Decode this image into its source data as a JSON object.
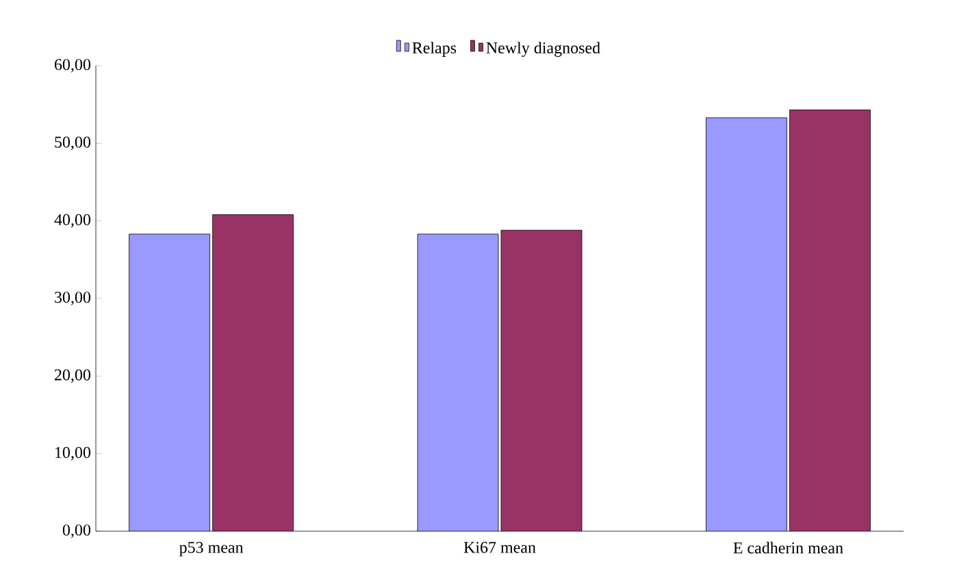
{
  "chart_data": {
    "type": "bar",
    "categories": [
      "p53 mean",
      "Ki67 mean",
      "E cadherin mean"
    ],
    "series": [
      {
        "name": "Relaps",
        "color": "#9999ff",
        "values": [
          38.3,
          38.3,
          53.3
        ]
      },
      {
        "name": "Newly diagnosed",
        "color": "#993366",
        "values": [
          40.8,
          38.8,
          54.3
        ]
      }
    ],
    "ylim": [
      0,
      60
    ],
    "yticks": [
      {
        "value": 0,
        "label": "0,00"
      },
      {
        "value": 10,
        "label": "10,00"
      },
      {
        "value": 20,
        "label": "20,00"
      },
      {
        "value": 30,
        "label": "30,00"
      },
      {
        "value": 40,
        "label": "40,00"
      },
      {
        "value": 50,
        "label": "50,00"
      },
      {
        "value": 60,
        "label": "60,00"
      }
    ],
    "legend": "top"
  }
}
